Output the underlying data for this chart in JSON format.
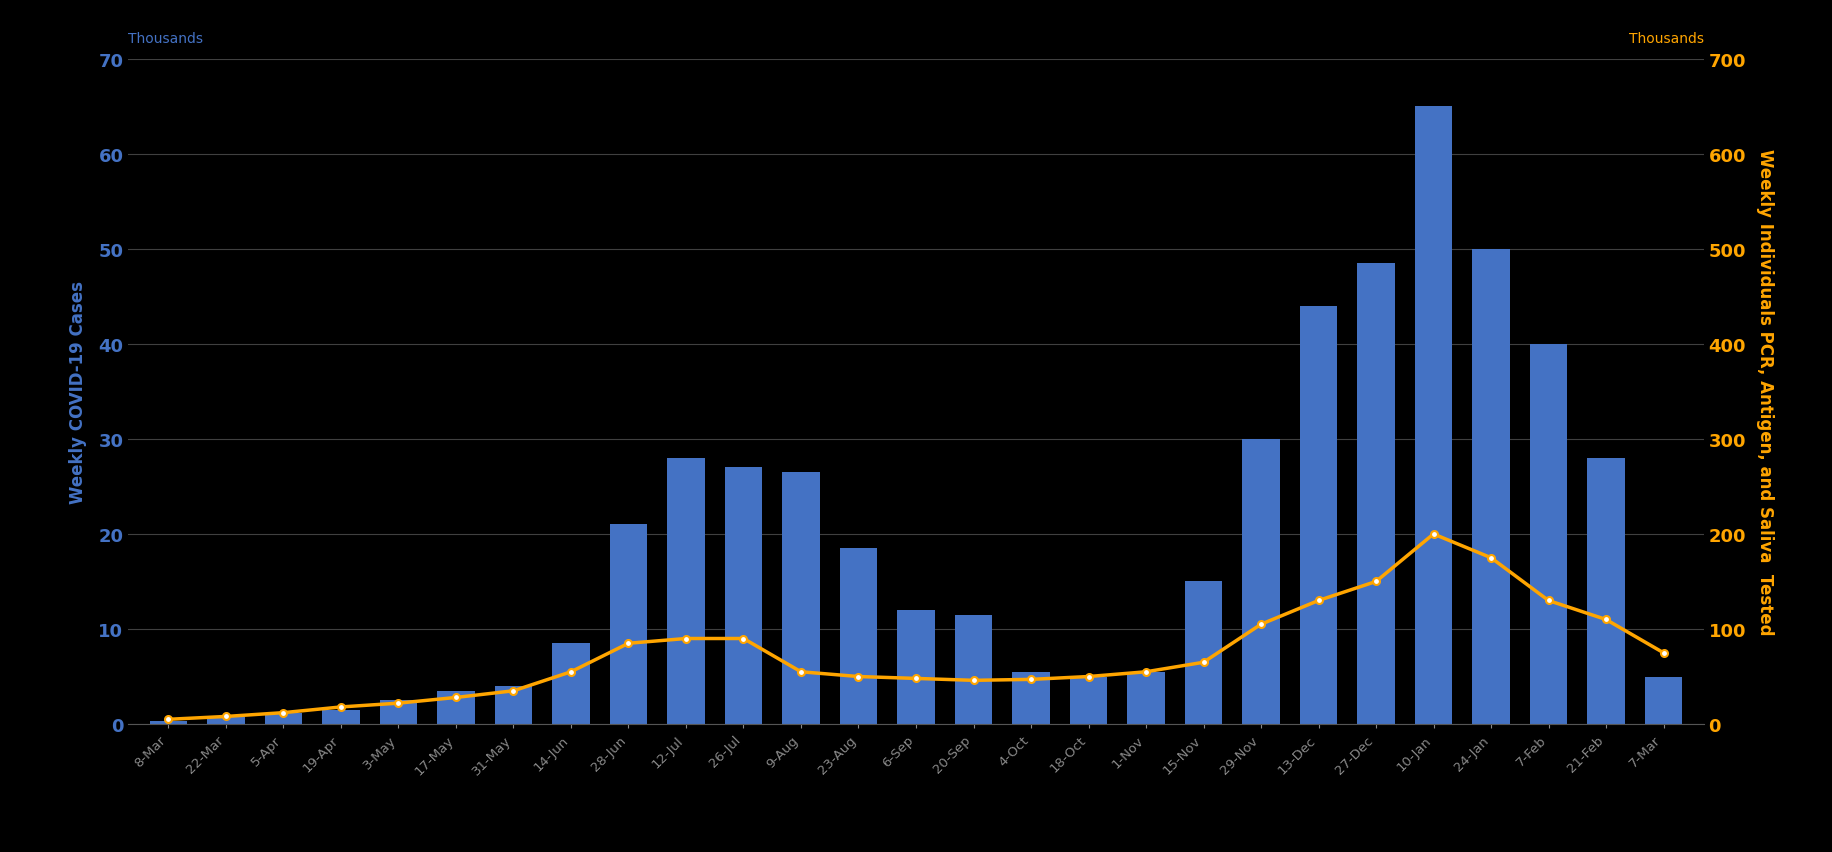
{
  "background_color": "#000000",
  "left_ylabel": "Weekly COVID-19 Cases",
  "right_ylabel": "Weekly Individuals PCR, Antigen, and Saliva  Tested",
  "left_ylabel_color": "#4472C4",
  "right_ylabel_color": "#FFA500",
  "left_yunits": "Thousands",
  "right_yunits": "Thousands",
  "ylim_left": [
    0,
    70
  ],
  "ylim_right": [
    0,
    700
  ],
  "yticks_left": [
    0,
    10,
    20,
    30,
    40,
    50,
    60,
    70
  ],
  "yticks_right": [
    0,
    100,
    200,
    300,
    400,
    500,
    600,
    700
  ],
  "grid_color": "#404040",
  "bar_color": "#4472C4",
  "line_color": "#FFA500",
  "line_marker_facecolor": "#FFFFFF",
  "categories": [
    "8-Mar",
    "22-Mar",
    "5-Apr",
    "19-Apr",
    "3-May",
    "17-May",
    "31-May",
    "14-Jun",
    "28-Jun",
    "12-Jul",
    "26-Jul",
    "9-Aug",
    "23-Aug",
    "6-Sep",
    "20-Sep",
    "4-Oct",
    "18-Oct",
    "1-Nov",
    "15-Nov",
    "29-Nov",
    "13-Dec",
    "27-Dec",
    "10-Jan",
    "24-Jan",
    "7-Feb",
    "21-Feb",
    "7-Mar"
  ],
  "bar_values": [
    0.3,
    0.7,
    1.2,
    1.5,
    2.5,
    3.5,
    4.0,
    8.5,
    21.0,
    28.0,
    27.0,
    26.5,
    18.5,
    12.0,
    11.5,
    5.5,
    5.0,
    5.5,
    15.0,
    30.0,
    44.0,
    48.5,
    65.0,
    50.0,
    40.0,
    28.0,
    5.0
  ],
  "line_values": [
    5,
    8,
    12,
    18,
    22,
    28,
    35,
    55,
    85,
    90,
    90,
    55,
    50,
    48,
    46,
    47,
    50,
    55,
    65,
    105,
    130,
    150,
    200,
    175,
    130,
    110,
    75
  ]
}
